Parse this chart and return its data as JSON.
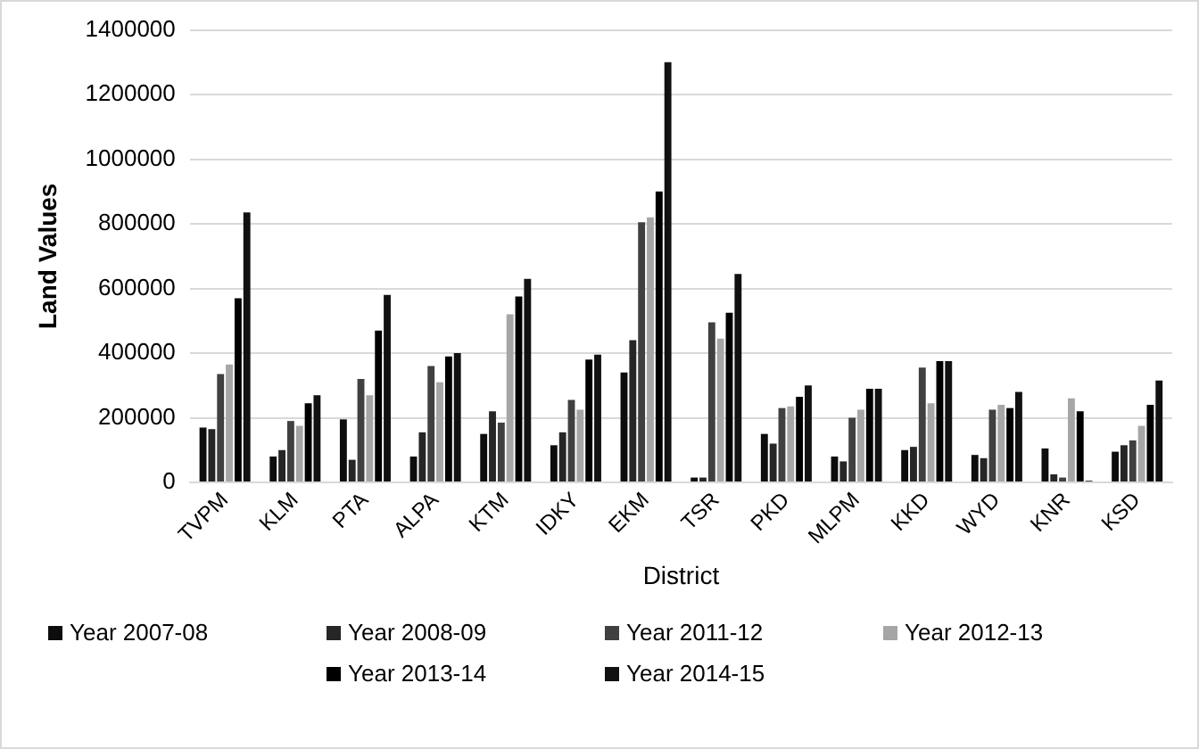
{
  "chart_data": {
    "type": "bar",
    "xlabel": "District",
    "ylabel": "Land Values",
    "categories": [
      "TVPM",
      "KLM",
      "PTA",
      "ALPA",
      "KTM",
      "IDKY",
      "EKM",
      "TSR",
      "PKD",
      "MLPM",
      "KKD",
      "WYD",
      "KNR",
      "KSD"
    ],
    "series": [
      {
        "name": "Year 2007-08",
        "color": "#0d0d0d",
        "values": [
          170000,
          80000,
          195000,
          80000,
          150000,
          115000,
          340000,
          15000,
          150000,
          80000,
          100000,
          85000,
          105000,
          95000
        ]
      },
      {
        "name": "Year 2008-09",
        "color": "#262626",
        "values": [
          165000,
          100000,
          70000,
          155000,
          220000,
          155000,
          440000,
          15000,
          120000,
          65000,
          110000,
          75000,
          25000,
          115000
        ]
      },
      {
        "name": "Year 2011-12",
        "color": "#404040",
        "values": [
          335000,
          190000,
          320000,
          360000,
          185000,
          255000,
          805000,
          495000,
          230000,
          200000,
          355000,
          225000,
          15000,
          130000
        ]
      },
      {
        "name": "Year 2012-13",
        "color": "#a6a6a6",
        "values": [
          365000,
          175000,
          270000,
          310000,
          520000,
          225000,
          820000,
          445000,
          235000,
          225000,
          245000,
          240000,
          260000,
          175000
        ]
      },
      {
        "name": "Year 2013-14",
        "color": "#000000",
        "values": [
          570000,
          245000,
          470000,
          390000,
          575000,
          380000,
          900000,
          525000,
          265000,
          290000,
          375000,
          230000,
          220000,
          240000
        ]
      },
      {
        "name": "Year 2014-15",
        "color": "#111111",
        "values": [
          835000,
          270000,
          580000,
          400000,
          630000,
          395000,
          1300000,
          645000,
          300000,
          290000,
          375000,
          280000,
          5000,
          315000
        ]
      }
    ],
    "ylim": [
      0,
      1400000
    ],
    "yticks": [
      0,
      200000,
      400000,
      600000,
      800000,
      1000000,
      1200000,
      1400000
    ],
    "grid": "y",
    "legend": "bottom"
  }
}
